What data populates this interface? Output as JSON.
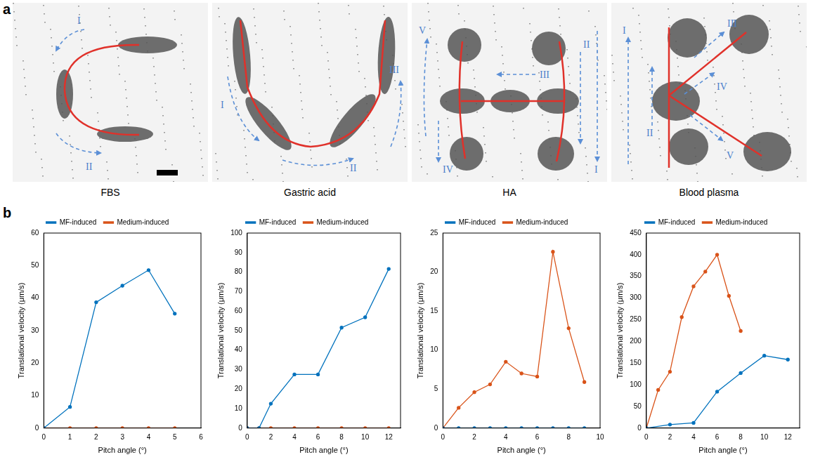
{
  "panel_a": {
    "letter": "a",
    "panels": [
      {
        "label": "FBS",
        "numerals": [
          "I",
          "II"
        ]
      },
      {
        "label": "Gastric acid",
        "numerals": [
          "I",
          "II",
          "III"
        ]
      },
      {
        "label": "HA",
        "numerals": [
          "I",
          "II",
          "III",
          "IV",
          "V"
        ]
      },
      {
        "label": "Blood plasma",
        "numerals": [
          "I",
          "II",
          "III",
          "IV",
          "V"
        ]
      }
    ]
  },
  "panel_b": {
    "letter": "b"
  },
  "chart_data": [
    {
      "type": "line",
      "x_label": "Pitch angle (°)",
      "y_label": "Translational velocity (μm/s)",
      "xlim": [
        0,
        6
      ],
      "xticks": [
        0,
        1,
        2,
        3,
        4,
        5,
        6
      ],
      "ylim": [
        0,
        60
      ],
      "yticks": [
        0,
        10,
        20,
        30,
        40,
        50,
        60
      ],
      "grid": false,
      "legend": "top",
      "marker": "circle",
      "series": [
        {
          "name": "MF-induced",
          "color": "#0072bd",
          "x": [
            0,
            1,
            2,
            3,
            4,
            5
          ],
          "values": [
            0,
            6.5,
            38.7,
            43.8,
            48.6,
            35.2
          ]
        },
        {
          "name": "Medium-induced",
          "color": "#d95319",
          "x": [
            0,
            1,
            2,
            3,
            4,
            5
          ],
          "values": [
            0,
            0,
            0,
            0,
            0,
            0
          ]
        }
      ]
    },
    {
      "type": "line",
      "x_label": "Pitch angle (°)",
      "y_label": "Translational velocity (μm/s)",
      "xlim": [
        0,
        13
      ],
      "xticks": [
        0,
        2,
        4,
        6,
        8,
        10,
        12
      ],
      "ylim": [
        0,
        100
      ],
      "yticks": [
        0,
        10,
        20,
        30,
        40,
        50,
        60,
        70,
        80,
        90,
        100
      ],
      "grid": false,
      "legend": "top",
      "marker": "circle",
      "series": [
        {
          "name": "MF-induced",
          "color": "#0072bd",
          "x": [
            0,
            1,
            2,
            4,
            6,
            8,
            10,
            12
          ],
          "values": [
            0,
            0,
            12.5,
            27.5,
            27.5,
            51.5,
            56.8,
            81.6
          ]
        },
        {
          "name": "Medium-induced",
          "color": "#d95319",
          "x": [
            0,
            1,
            2,
            4,
            6,
            8,
            10,
            12
          ],
          "values": [
            0,
            0,
            0,
            0,
            0,
            0,
            0,
            0
          ]
        }
      ]
    },
    {
      "type": "line",
      "x_label": "Pitch angle (°)",
      "y_label": "Translational velocity (μm/s)",
      "xlim": [
        0,
        10
      ],
      "xticks": [
        0,
        2,
        4,
        6,
        8,
        10
      ],
      "ylim": [
        0,
        25
      ],
      "yticks": [
        0,
        5,
        10,
        15,
        20,
        25
      ],
      "grid": false,
      "legend": "top",
      "marker": "circle",
      "series": [
        {
          "name": "MF-induced",
          "color": "#0072bd",
          "x": [
            0,
            1,
            2,
            3,
            4,
            5,
            6,
            7,
            8,
            9
          ],
          "values": [
            0,
            0,
            0,
            0,
            0,
            0,
            0,
            0,
            0,
            0
          ]
        },
        {
          "name": "Medium-induced",
          "color": "#d95319",
          "x": [
            0,
            1,
            2,
            3,
            4,
            5,
            6,
            7,
            8,
            9
          ],
          "values": [
            0,
            2.6,
            4.6,
            5.6,
            8.5,
            7.0,
            6.6,
            22.6,
            12.8,
            5.9
          ]
        }
      ]
    },
    {
      "type": "line",
      "x_label": "Pitch angle (°)",
      "y_label": "Translational velocity (μm/s)",
      "xlim": [
        0,
        13
      ],
      "xticks": [
        0,
        2,
        4,
        6,
        8,
        10,
        12
      ],
      "ylim": [
        0,
        450
      ],
      "yticks": [
        0,
        50,
        100,
        150,
        200,
        250,
        300,
        350,
        400,
        450
      ],
      "grid": false,
      "legend": "top",
      "marker": "circle",
      "series": [
        {
          "name": "MF-induced",
          "color": "#0072bd",
          "x": [
            0,
            2,
            4,
            6,
            8,
            10,
            12
          ],
          "values": [
            0,
            8,
            12,
            84,
            127,
            167,
            158
          ]
        },
        {
          "name": "Medium-induced",
          "color": "#d95319",
          "x": [
            0,
            1,
            2,
            3,
            4,
            5,
            6,
            7,
            8
          ],
          "values": [
            0,
            88,
            130,
            256,
            327,
            361,
            400,
            305,
            224
          ]
        }
      ]
    }
  ]
}
